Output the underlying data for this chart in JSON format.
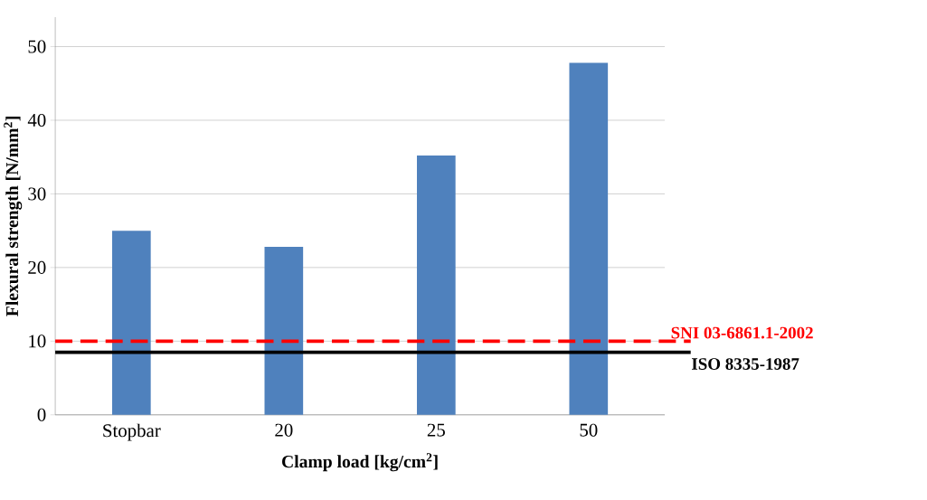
{
  "chart_data": {
    "type": "bar",
    "xlabel": "Clamp load [kg/cm$^{2}$]",
    "ylabel": "Flexural strength [N/mm$^{2}$]",
    "categories": [
      "Stopbar",
      "20",
      "25",
      "50"
    ],
    "values": [
      25.0,
      22.8,
      35.2,
      47.8
    ],
    "color": "#4f81bd",
    "ylim": [
      0,
      54
    ],
    "yticks": [
      0,
      10,
      20,
      30,
      40,
      50
    ],
    "grid": "y",
    "ref_lines": [
      {
        "axis": "y",
        "value": 10,
        "label": "SNI 03-6861.1-2002",
        "color": "#ff0000",
        "line_style": "dashed"
      },
      {
        "axis": "y",
        "value": 8.5,
        "label": "ISO 8335-1987",
        "color": "#000000",
        "line_style": "solid"
      }
    ]
  }
}
